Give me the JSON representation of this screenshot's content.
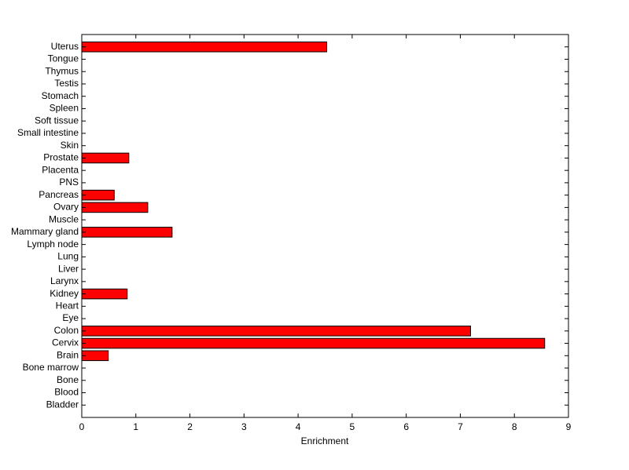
{
  "chart_data": {
    "type": "barh",
    "xlabel": "Enrichment",
    "categories": [
      "Bladder",
      "Blood",
      "Bone",
      "Bone marrow",
      "Brain",
      "Cervix",
      "Colon",
      "Eye",
      "Heart",
      "Kidney",
      "Larynx",
      "Liver",
      "Lung",
      "Lymph node",
      "Mammary gland",
      "Muscle",
      "Ovary",
      "Pancreas",
      "PNS",
      "Placenta",
      "Prostate",
      "Skin",
      "Small intestine",
      "Soft tissue",
      "Spleen",
      "Stomach",
      "Testis",
      "Thymus",
      "Tongue",
      "Uterus"
    ],
    "values": [
      0,
      0,
      0,
      0,
      0.49,
      8.56,
      7.19,
      0,
      0,
      0.84,
      0,
      0,
      0,
      0,
      1.67,
      0,
      1.22,
      0.6,
      0,
      0,
      0.87,
      0,
      0,
      0,
      0,
      0,
      0,
      0,
      0,
      4.53
    ],
    "color": "#ff0000",
    "xlim": [
      0,
      9
    ],
    "xticks": [
      0,
      1,
      2,
      3,
      4,
      5,
      6,
      7,
      8,
      9
    ]
  }
}
